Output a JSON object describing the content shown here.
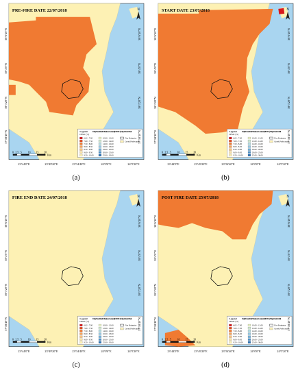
{
  "panels": [
    {
      "title": "PRE-FIRE DATE 22/07/2018",
      "caption": "(a)"
    },
    {
      "title": "START DATE 23/07/2018",
      "caption": "(b)"
    },
    {
      "title": "FIRE END DATE 24/07/2018",
      "caption": "(c)"
    },
    {
      "title": "POST FIRE DATE 25/07/2018",
      "caption": "(d)"
    }
  ],
  "x_labels": [
    "23°44'0\"E",
    "23°49'20\"E",
    "23°54'40\"E",
    "24°0'0\"E",
    "24°5'20\"E"
  ],
  "y_labels": [
    "38°6'40\"N",
    "38°4'0\"N",
    "38°1'20\"N",
    "37°58'40\"N"
  ],
  "legend": {
    "title": "Legend",
    "unit": "DFMC (%)",
    "heading": "Daily Dead Fuel Moisture Content (DFMC) Map-Fire in Mati",
    "classes": [
      {
        "label": "6.02 - 7.00",
        "color": "#d7191c"
      },
      {
        "label": "7.00 - 7.50",
        "color": "#e34a1f"
      },
      {
        "label": "7.50 - 8.00",
        "color": "#f07a32"
      },
      {
        "label": "8.00 - 8.50",
        "color": "#f7a25a"
      },
      {
        "label": "8.50 - 9.00",
        "color": "#fbc27e"
      },
      {
        "label": "9.00 - 9.50",
        "color": "#fde2a4"
      },
      {
        "label": "9.50 - 10.00",
        "color": "#fdf1b4"
      },
      {
        "label": "10.00 - 12.00",
        "color": "#e8f2c4"
      },
      {
        "label": "12.00 - 14.00",
        "color": "#cfe8cf"
      },
      {
        "label": "14.00 - 16.00",
        "color": "#b1dbe0"
      },
      {
        "label": "16.00 - 18.00",
        "color": "#93c8e4"
      },
      {
        "label": "18.00 - 20.00",
        "color": "#6fb0db"
      },
      {
        "label": "20.00 - 25.00",
        "color": "#4a92cc"
      },
      {
        "label": "25.00 - 30.00",
        "color": "#2c74b8"
      }
    ],
    "fire_perimeter": "Fire Perimeter",
    "prefectures": "Greek Prefectures"
  },
  "scale": {
    "labels": [
      "0",
      "2.5",
      "5",
      "10",
      "15",
      "20"
    ],
    "unit": "Km"
  },
  "north": "N"
}
